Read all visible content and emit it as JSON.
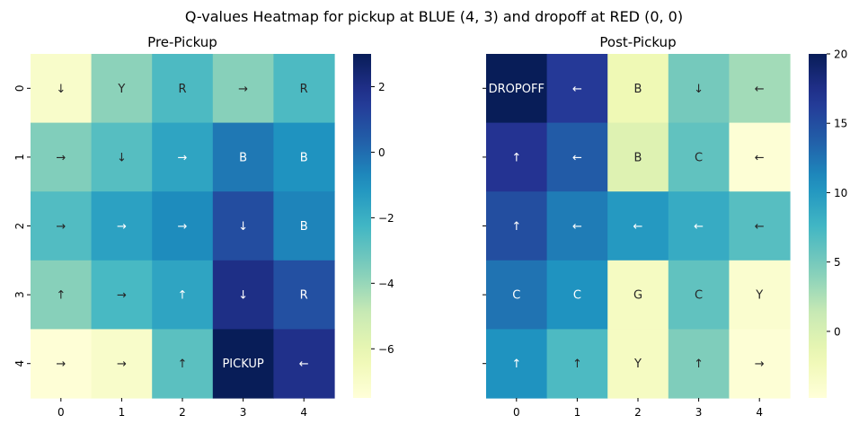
{
  "figure_title": "Q-values Heatmap for pickup at BLUE (4, 3) and dropoff at RED (0, 0)",
  "chart_data": [
    {
      "type": "heatmap",
      "title": "Pre-Pickup",
      "xlabel": "",
      "ylabel": "",
      "x_ticks": [
        "0",
        "1",
        "2",
        "3",
        "4"
      ],
      "y_ticks": [
        "0",
        "1",
        "2",
        "3",
        "4"
      ],
      "colormap": "YlGnBu",
      "value_range": [
        -7.5,
        3
      ],
      "colorbar_ticks": [
        "2",
        "0",
        "−2",
        "−4",
        "−6"
      ],
      "colorbar_tick_values": [
        2,
        0,
        -2,
        -4,
        -6
      ],
      "values": [
        [
          -7.0,
          -3.8,
          -2.5,
          -3.7,
          -2.5
        ],
        [
          -3.6,
          -2.7,
          -1.6,
          -0.3,
          -1.0
        ],
        [
          -2.6,
          -1.5,
          -0.8,
          0.9,
          -0.6
        ],
        [
          -3.7,
          -2.4,
          -1.6,
          2.0,
          0.8
        ],
        [
          -7.4,
          -7.0,
          -2.8,
          3.0,
          1.9
        ]
      ],
      "annotations": [
        [
          "↓",
          "Y",
          "R",
          "→",
          "R"
        ],
        [
          "→",
          "↓",
          "→",
          "B",
          "B"
        ],
        [
          "→",
          "→",
          "→",
          "↓",
          "B"
        ],
        [
          "↑",
          "→",
          "↑",
          "↓",
          "R"
        ],
        [
          "→",
          "→",
          "↑",
          "PICKUP",
          "←"
        ]
      ]
    },
    {
      "type": "heatmap",
      "title": "Post-Pickup",
      "xlabel": "",
      "ylabel": "",
      "x_ticks": [
        "0",
        "1",
        "2",
        "3",
        "4"
      ],
      "y_ticks": [
        "0",
        "1",
        "2",
        "3",
        "4"
      ],
      "colormap": "YlGnBu",
      "value_range": [
        -4.8,
        20
      ],
      "colorbar_ticks": [
        "20",
        "15",
        "10",
        "5",
        "0"
      ],
      "colorbar_tick_values": [
        20,
        15,
        10,
        5,
        0
      ],
      "values": [
        [
          20.0,
          16.5,
          -2.0,
          5.0,
          3.0
        ],
        [
          17.0,
          14.0,
          -0.5,
          6.0,
          -4.5
        ],
        [
          15.0,
          12.0,
          10.0,
          8.5,
          6.5
        ],
        [
          12.5,
          10.5,
          -3.0,
          6.0,
          -4.0
        ],
        [
          10.5,
          7.0,
          -3.0,
          4.5,
          -4.5
        ]
      ],
      "annotations": [
        [
          "DROPOFF",
          "←",
          "B",
          "↓",
          "←"
        ],
        [
          "↑",
          "←",
          "B",
          "C",
          "←"
        ],
        [
          "↑",
          "←",
          "←",
          "←",
          "←"
        ],
        [
          "C",
          "C",
          "G",
          "C",
          "Y"
        ],
        [
          "↑",
          "↑",
          "Y",
          "↑",
          "→"
        ]
      ]
    }
  ]
}
